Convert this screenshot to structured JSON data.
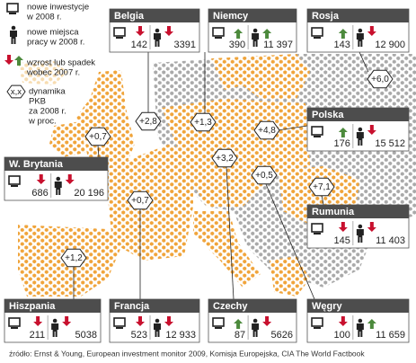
{
  "legend": {
    "investments": [
      "nowe inwestycje",
      "w 2008 r."
    ],
    "jobs": [
      "nowe miejsca",
      "pracy w 2008 r."
    ],
    "trend": [
      "wzrost lub spadek",
      "wobec 2007 r."
    ],
    "gdp_symbol": "x,x",
    "gdp": [
      "dynamika",
      "PKB",
      "za 2008 r.",
      "w proc."
    ]
  },
  "countries": [
    {
      "name": "Belgia",
      "investments": {
        "value": "142",
        "trend": "down"
      },
      "jobs": {
        "value": "3391",
        "trend": "down"
      },
      "gdp": "+2,8"
    },
    {
      "name": "Niemcy",
      "investments": {
        "value": "390",
        "trend": "up"
      },
      "jobs": {
        "value": "11 397",
        "trend": "up"
      },
      "gdp": "+1,3"
    },
    {
      "name": "Rosja",
      "investments": {
        "value": "143",
        "trend": "up"
      },
      "jobs": {
        "value": "12 900",
        "trend": "down"
      },
      "gdp": "+6,0"
    },
    {
      "name": "Polska",
      "investments": {
        "value": "176",
        "trend": "up"
      },
      "jobs": {
        "value": "15 512",
        "trend": "down"
      },
      "gdp": "+4,8"
    },
    {
      "name": "W. Brytania",
      "investments": {
        "value": "686",
        "trend": "down"
      },
      "jobs": {
        "value": "20 196",
        "trend": "down"
      },
      "gdp": "+0,7"
    },
    {
      "name": "Rumunia",
      "investments": {
        "value": "145",
        "trend": "down"
      },
      "jobs": {
        "value": "11 403",
        "trend": "down"
      },
      "gdp": "+7,1"
    },
    {
      "name": "Hiszpania",
      "investments": {
        "value": "211",
        "trend": "down"
      },
      "jobs": {
        "value": "5038",
        "trend": "down"
      },
      "gdp": "+1,2"
    },
    {
      "name": "Francja",
      "investments": {
        "value": "523",
        "trend": "down"
      },
      "jobs": {
        "value": "12 933",
        "trend": "down"
      },
      "gdp": "+0,7"
    },
    {
      "name": "Czechy",
      "investments": {
        "value": "87",
        "trend": "up"
      },
      "jobs": {
        "value": "5626",
        "trend": "down"
      },
      "gdp": "+3,2"
    },
    {
      "name": "Węgry",
      "investments": {
        "value": "100",
        "trend": "down"
      },
      "jobs": {
        "value": "11 659",
        "trend": "up"
      },
      "gdp": "+0,5"
    }
  ],
  "source": "źródło: Ernst & Young, European investment monitor 2009, Komisja Europejska, CIA The World Factbook"
}
